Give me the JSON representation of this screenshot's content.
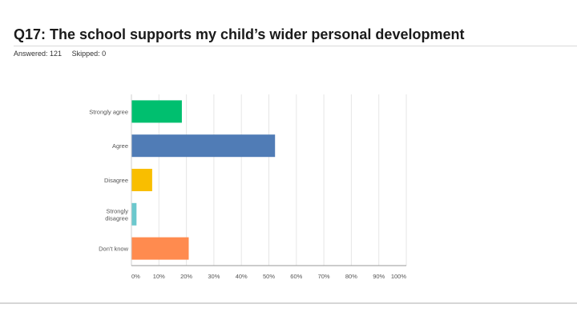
{
  "question": {
    "title": "Q17: The school supports my child’s wider personal development",
    "answered": "Answered: 121",
    "skipped": "Skipped: 0"
  },
  "chart_data": {
    "type": "bar",
    "orientation": "horizontal",
    "title": "Q17: The school supports my child’s wider personal development",
    "categories": [
      [
        "Strongly agree"
      ],
      [
        "Agree"
      ],
      [
        "Disagree"
      ],
      [
        "Strongly",
        "disagree"
      ],
      [
        "Don't know"
      ]
    ],
    "values": [
      18.2,
      52.1,
      7.4,
      1.7,
      20.7
    ],
    "colors": [
      "#00bf6f",
      "#507cb6",
      "#f9be00",
      "#6bc8cd",
      "#ff8b4f"
    ],
    "xlim": [
      0,
      100
    ],
    "xticks": [
      0,
      10,
      20,
      30,
      40,
      50,
      60,
      70,
      80,
      90,
      100
    ],
    "xtick_labels": [
      "0%",
      "10%",
      "20%",
      "30%",
      "40%",
      "50%",
      "60%",
      "70%",
      "80%",
      "90%",
      "100%"
    ],
    "grid": true,
    "legend": "none"
  }
}
